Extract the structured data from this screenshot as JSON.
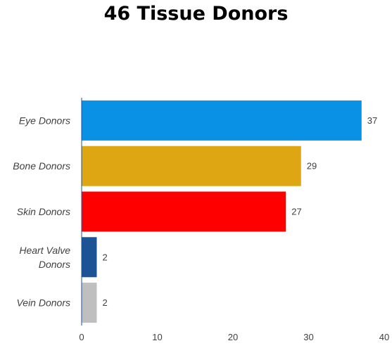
{
  "chart_data": {
    "type": "bar",
    "orientation": "horizontal",
    "title": "46 Tissue Donors",
    "categories": [
      "Eye Donors",
      "Bone Donors",
      "Skin Donors",
      "Heart Valve Donors",
      "Vein Donors"
    ],
    "category_lines": [
      [
        "Eye Donors"
      ],
      [
        "Bone Donors"
      ],
      [
        "Skin Donors"
      ],
      [
        "Heart Valve",
        "Donors"
      ],
      [
        "Vein Donors"
      ]
    ],
    "values": [
      37,
      29,
      27,
      2,
      2
    ],
    "colors": [
      "#0991E6",
      "#DFA614",
      "#FF0000",
      "#1C5394",
      "#BFBFBF"
    ],
    "xlim": [
      0,
      40
    ],
    "xticks": [
      0,
      10,
      20,
      30,
      40
    ],
    "grid": false,
    "legend": "none",
    "data_labels": true
  }
}
